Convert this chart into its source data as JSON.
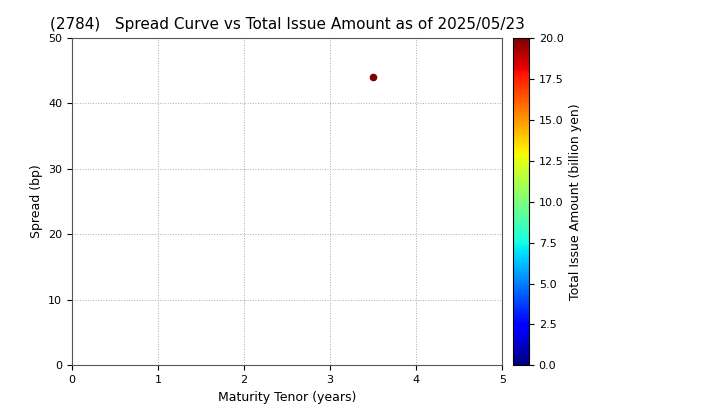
{
  "title": "(2784)   Spread Curve vs Total Issue Amount as of 2025/05/23",
  "xlabel": "Maturity Tenor (years)",
  "ylabel": "Spread (bp)",
  "colorbar_label": "Total Issue Amount (billion yen)",
  "xlim": [
    0,
    5
  ],
  "ylim": [
    0,
    50
  ],
  "xticks": [
    0,
    1,
    2,
    3,
    4,
    5
  ],
  "yticks": [
    0,
    10,
    20,
    30,
    40,
    50
  ],
  "colorbar_min": 0.0,
  "colorbar_max": 20.0,
  "scatter_x": [
    3.5
  ],
  "scatter_y": [
    44
  ],
  "scatter_value": [
    20.0
  ],
  "scatter_size": 20,
  "background_color": "#ffffff",
  "grid_color": "#aaaaaa",
  "title_fontsize": 11,
  "axis_fontsize": 9,
  "tick_fontsize": 8,
  "colorbar_ticks": [
    0.0,
    2.5,
    5.0,
    7.5,
    10.0,
    12.5,
    15.0,
    17.5,
    20.0
  ]
}
